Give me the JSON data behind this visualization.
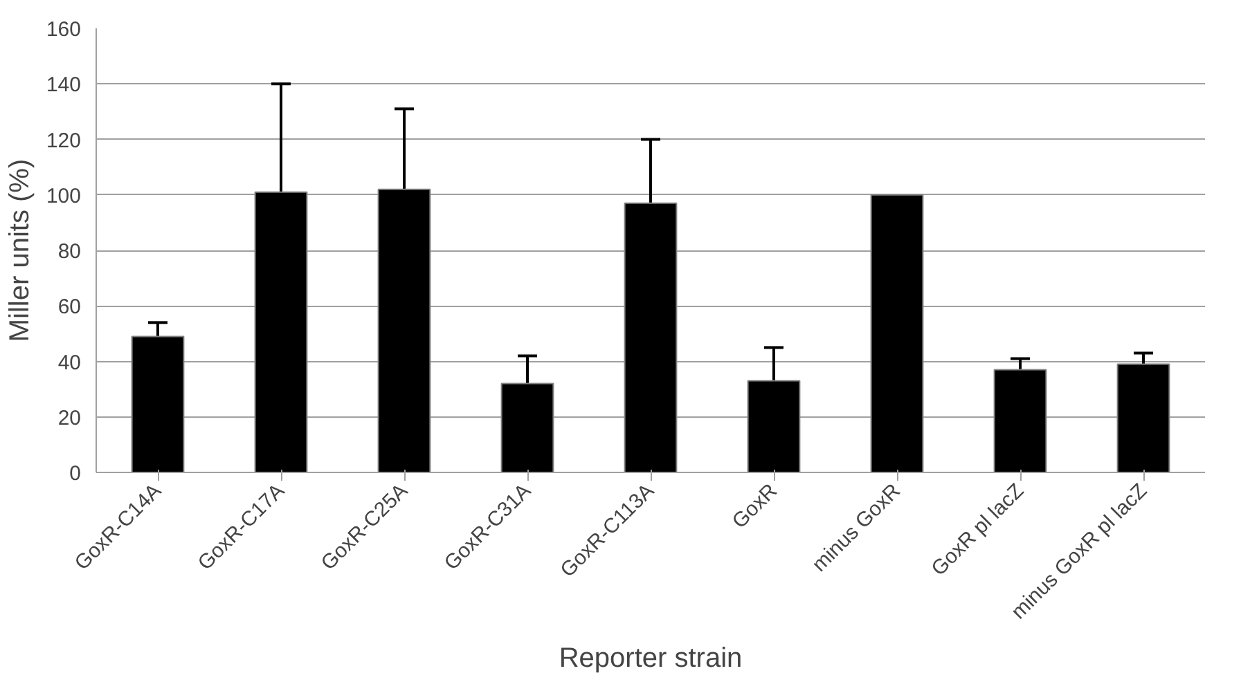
{
  "chart_data": {
    "type": "bar",
    "xlabel": "Reporter strain",
    "ylabel": "Miller units (%)",
    "categories": [
      "GoxR-C14A",
      "GoxR-C17A",
      "GoxR-C25A",
      "GoxR-C31A",
      "GoxR-C113A",
      "GoxR",
      "minus GoxR",
      "GoxR pl lacZ",
      "minus GoxR pl lacZ"
    ],
    "values": [
      49,
      101,
      102,
      32,
      97,
      33,
      100,
      37,
      39
    ],
    "errors": [
      [
        49,
        54
      ],
      [
        101,
        140
      ],
      [
        102,
        131
      ],
      [
        32,
        42
      ],
      [
        97,
        120
      ],
      [
        33,
        45
      ],
      null,
      [
        37,
        41
      ],
      [
        39,
        43
      ]
    ],
    "color": "#000000",
    "ylim": [
      0,
      160
    ],
    "yticks": [
      0,
      20,
      40,
      60,
      80,
      100,
      120,
      140,
      160
    ],
    "grid": "y"
  }
}
